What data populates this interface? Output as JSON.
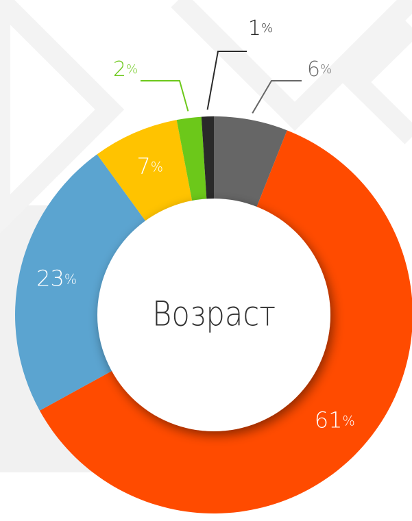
{
  "chart_data": {
    "type": "pie",
    "title": "Возраст",
    "values": [
      6,
      61,
      23,
      7,
      2,
      1
    ],
    "value_labels": [
      "6%",
      "61%",
      "23%",
      "7%",
      "2%",
      "1%"
    ],
    "colors": [
      "#666666",
      "#ff4b00",
      "#5ba4d0",
      "#ffc300",
      "#6cc81a",
      "#2a2a2a"
    ]
  }
}
